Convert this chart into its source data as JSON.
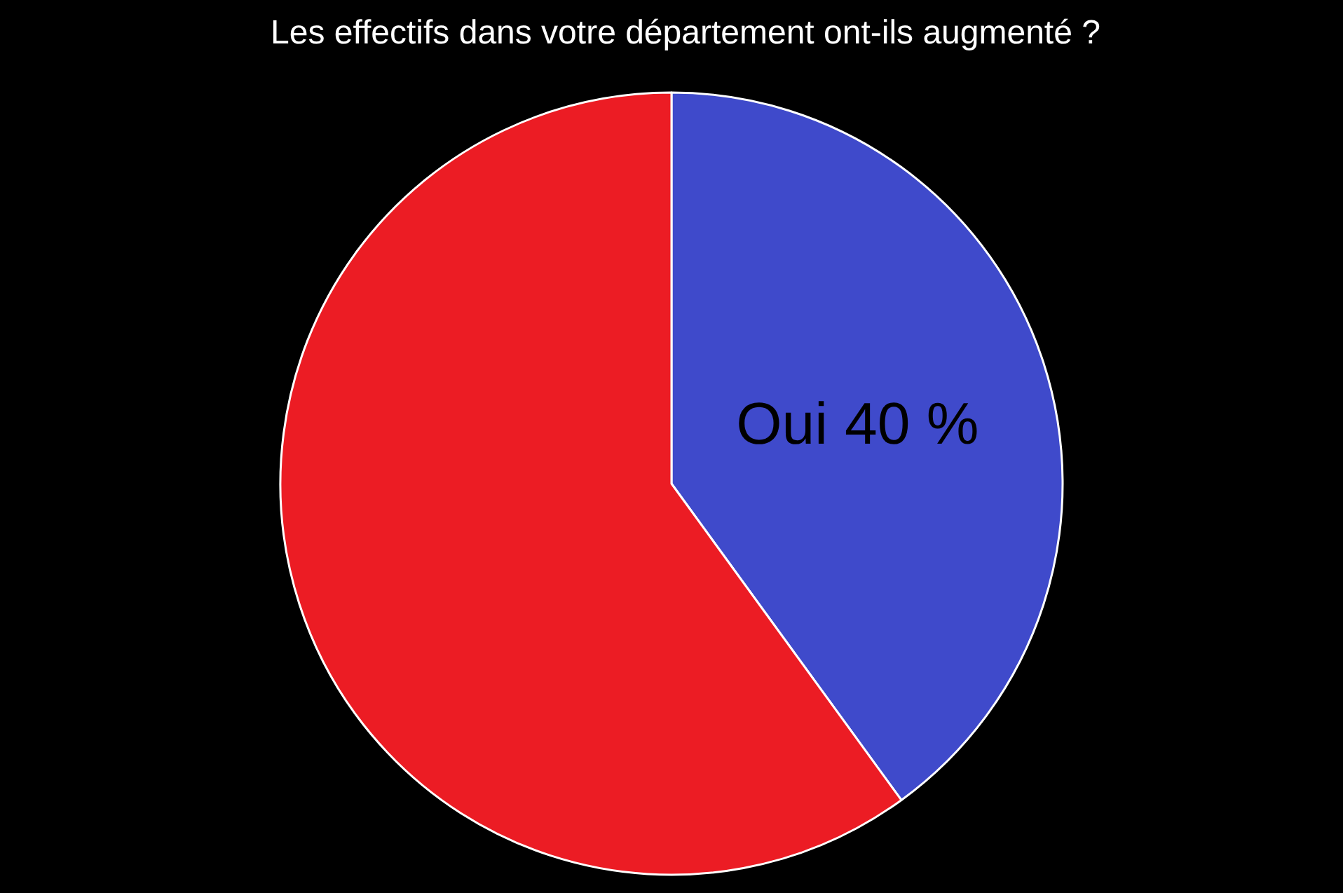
{
  "chart_data": {
    "type": "pie",
    "title": "Les effectifs dans votre département ont-ils augmenté ?",
    "categories": [
      "Oui",
      null
    ],
    "values": [
      40,
      60
    ],
    "colors": [
      "#3f4acb",
      "#ec1c24"
    ],
    "value_labels": [
      "40 %",
      null
    ]
  }
}
